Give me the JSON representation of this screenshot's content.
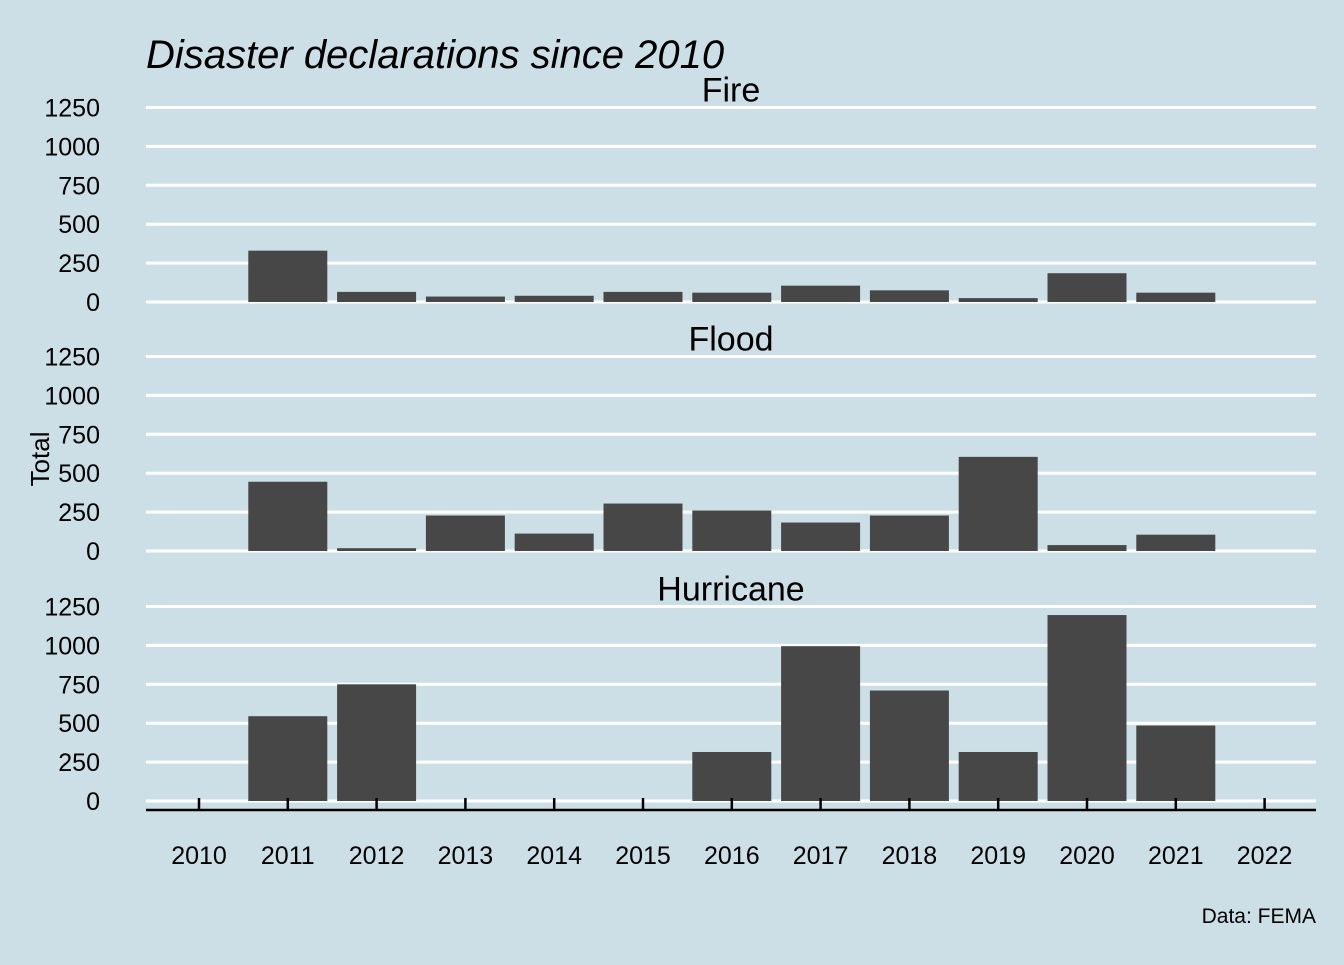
{
  "chart_data": {
    "type": "bar",
    "title": "Disaster declarations since 2010",
    "ylabel": "Total",
    "xlabel": "",
    "caption": "Data: FEMA",
    "x_ticks": [
      "2010",
      "2011",
      "2012",
      "2013",
      "2014",
      "2015",
      "2016",
      "2017",
      "2018",
      "2019",
      "2020",
      "2021",
      "2022"
    ],
    "ylim": [
      0,
      1250
    ],
    "y_ticks": [
      0,
      250,
      500,
      750,
      1000,
      1250
    ],
    "grid": true,
    "bar_color": "#474747",
    "background_color": "#cddfe6",
    "grid_color": "#ffffff",
    "panels": [
      {
        "name": "Fire",
        "categories": [
          "2011",
          "2012",
          "2013",
          "2014",
          "2015",
          "2016",
          "2017",
          "2018",
          "2019",
          "2020",
          "2021"
        ],
        "values": [
          330,
          65,
          35,
          40,
          65,
          60,
          105,
          75,
          25,
          185,
          60
        ]
      },
      {
        "name": "Flood",
        "categories": [
          "2011",
          "2012",
          "2013",
          "2014",
          "2015",
          "2016",
          "2017",
          "2018",
          "2019",
          "2020",
          "2021"
        ],
        "values": [
          445,
          18,
          228,
          112,
          305,
          260,
          183,
          228,
          605,
          38,
          105
        ]
      },
      {
        "name": "Hurricane",
        "categories": [
          "2011",
          "2012",
          "2013",
          "2014",
          "2015",
          "2016",
          "2017",
          "2018",
          "2019",
          "2020",
          "2021"
        ],
        "values": [
          545,
          750,
          0,
          0,
          0,
          315,
          995,
          710,
          315,
          1195,
          485
        ]
      }
    ]
  }
}
